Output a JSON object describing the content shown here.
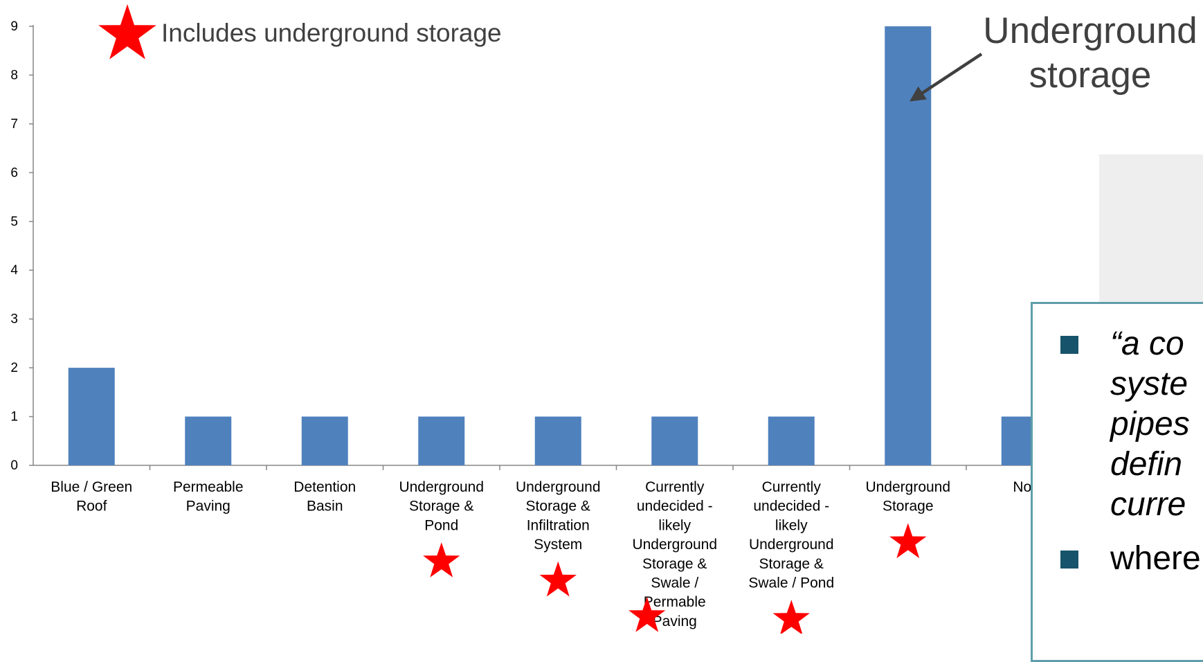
{
  "chart_data": {
    "type": "bar",
    "categories": [
      "Blue / Green\nRoof",
      "Permeable\nPaving",
      "Detention\nBasin",
      "Underground\nStorage &\nPond",
      "Underground\nStorage &\nInfiltration\nSystem",
      "Currently\nundecided -\nlikely\nUnderground\nStorage &\nSwale /\nPermable\nPaving",
      "Currently\nundecided -\nlikely\nUnderground\nStorage &\nSwale / Pond",
      "Underground\nStorage",
      "Nor"
    ],
    "values": [
      2,
      1,
      1,
      1,
      1,
      1,
      1,
      9,
      1
    ],
    "starred": [
      false,
      false,
      false,
      true,
      true,
      true,
      true,
      true,
      false
    ],
    "ylim": [
      0,
      9
    ],
    "yticks": [
      "0",
      "1",
      "2",
      "3",
      "4",
      "5",
      "6",
      "7",
      "8",
      "9"
    ],
    "bar_color": "#4f81bd",
    "star_color": "#ff0000",
    "legend": {
      "label": "Includes underground storage"
    },
    "annotation": {
      "text": [
        "Underground",
        "storage"
      ],
      "target_index": 7
    }
  },
  "textbox": {
    "border_color": "#5f9ea9",
    "bullet_color": "#17536b",
    "bullets": [
      {
        "lines": [
          "“a co",
          "syste",
          "pipes",
          "defin",
          "curre"
        ],
        "italic": true
      },
      {
        "lines": [
          "where"
        ],
        "italic": false
      }
    ]
  }
}
